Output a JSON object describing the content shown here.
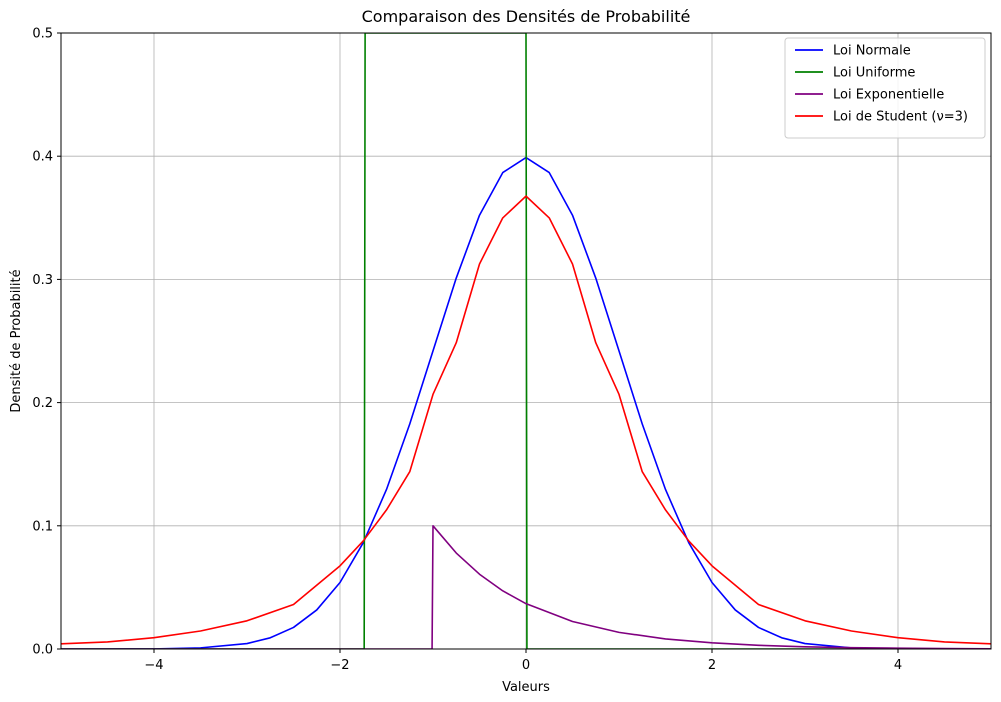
{
  "chart_data": {
    "type": "line",
    "title": "Comparaison des Densités de Probabilité",
    "xlabel": "Valeurs",
    "ylabel": "Densité de Probabilité",
    "xlim": [
      -5,
      5
    ],
    "ylim": [
      0,
      0.5
    ],
    "x_ticks": [
      -4,
      -2,
      0,
      2,
      4
    ],
    "x_tick_labels": [
      "−4",
      "−2",
      "0",
      "2",
      "4"
    ],
    "y_ticks": [
      0.0,
      0.1,
      0.2,
      0.3,
      0.4,
      0.5
    ],
    "y_tick_labels": [
      "0.0",
      "0.1",
      "0.2",
      "0.3",
      "0.4",
      "0.5"
    ],
    "grid": true,
    "legend_position": "top-right",
    "series": [
      {
        "name": "Loi Normale",
        "color": "#0000ff",
        "x": [
          -5,
          -4.5,
          -4,
          -3.5,
          -3,
          -2.75,
          -2.5,
          -2.25,
          -2,
          -1.75,
          -1.5,
          -1.25,
          -1,
          -0.75,
          -0.5,
          -0.25,
          0,
          0.25,
          0.5,
          0.75,
          1,
          1.25,
          1.5,
          1.75,
          2,
          2.25,
          2.5,
          2.75,
          3,
          3.5,
          4,
          4.5,
          5
        ],
        "y": [
          0.0,
          0.0,
          0.0001,
          0.0009,
          0.0044,
          0.0091,
          0.0175,
          0.0317,
          0.054,
          0.0863,
          0.1295,
          0.1826,
          0.242,
          0.3011,
          0.3521,
          0.3867,
          0.3989,
          0.3867,
          0.3521,
          0.3011,
          0.242,
          0.1826,
          0.1295,
          0.0863,
          0.054,
          0.0317,
          0.0175,
          0.0091,
          0.0044,
          0.0009,
          0.0001,
          0.0,
          0.0
        ]
      },
      {
        "name": "Loi Uniforme",
        "color": "#008000",
        "x": [
          -5,
          -1.74,
          -1.73,
          -1.72,
          -0.01,
          0,
          0.01,
          5
        ],
        "y": [
          0,
          0,
          0.5,
          0.5,
          0.5,
          0.5,
          0,
          0
        ]
      },
      {
        "name": "Loi Exponentielle",
        "color": "#800080",
        "x": [
          -5,
          -1.01,
          -1.0,
          -0.75,
          -0.5,
          -0.25,
          0,
          0.5,
          1,
          1.5,
          2,
          2.5,
          3,
          3.5,
          4,
          4.5,
          5
        ],
        "y": [
          0,
          0,
          0.1,
          0.0779,
          0.0607,
          0.0472,
          0.0368,
          0.0223,
          0.0135,
          0.0082,
          0.005,
          0.003,
          0.0018,
          0.0011,
          0.0007,
          0.0004,
          0.0002
        ]
      },
      {
        "name": "Loi de Student (ν=3)",
        "color": "#ff0000",
        "x": [
          -5,
          -4.5,
          -4,
          -3.5,
          -3,
          -2.5,
          -2,
          -1.75,
          -1.5,
          -1.25,
          -1,
          -0.75,
          -0.5,
          -0.25,
          0,
          0.25,
          0.5,
          0.75,
          1,
          1.25,
          1.5,
          1.75,
          2,
          2.5,
          3,
          3.5,
          4,
          4.5,
          5
        ],
        "y": [
          0.0042,
          0.0057,
          0.0092,
          0.0146,
          0.0229,
          0.0361,
          0.0675,
          0.0877,
          0.1129,
          0.1439,
          0.2067,
          0.2486,
          0.3125,
          0.3499,
          0.3676,
          0.3499,
          0.3125,
          0.2486,
          0.2067,
          0.1439,
          0.1129,
          0.0877,
          0.0675,
          0.0361,
          0.0229,
          0.0146,
          0.0092,
          0.0057,
          0.0042
        ]
      }
    ]
  }
}
